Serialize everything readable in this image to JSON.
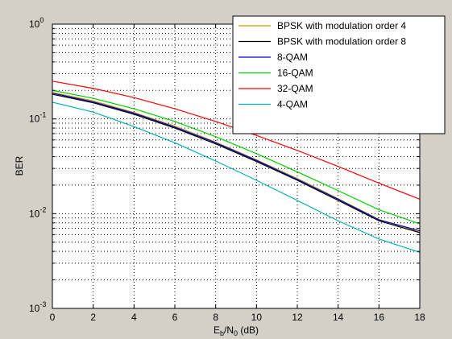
{
  "chart_data": {
    "type": "line",
    "title": "",
    "xlabel": {
      "main": "E",
      "sub1": "b",
      "mid": "/N",
      "sub2": "0",
      "tail": " (dB)"
    },
    "ylabel": "BER",
    "xlim": [
      0,
      18
    ],
    "ylim": [
      0.001,
      1
    ],
    "yscale": "log",
    "grid": true,
    "legend_position": "top-right",
    "x_ticks": [
      0,
      2,
      4,
      6,
      8,
      10,
      12,
      14,
      16,
      18
    ],
    "y_ticks": [
      {
        "base": "10",
        "exp": "-3",
        "value": 0.001
      },
      {
        "base": "10",
        "exp": "-2",
        "value": 0.01
      },
      {
        "base": "10",
        "exp": "-1",
        "value": 0.1
      },
      {
        "base": "10",
        "exp": "0",
        "value": 1
      }
    ],
    "x": [
      0,
      2,
      4,
      6,
      8,
      10,
      12,
      14,
      16,
      18
    ],
    "series": [
      {
        "name": "BPSK with modulation order 4",
        "color": "#c8a000",
        "values": [
          0.19,
          0.155,
          0.117,
          0.084,
          0.057,
          0.037,
          0.0235,
          0.0144,
          0.0087,
          0.0064
        ]
      },
      {
        "name": "BPSK with modulation order 8",
        "color": "#000000",
        "values": [
          0.182,
          0.148,
          0.112,
          0.08,
          0.0545,
          0.0355,
          0.0225,
          0.0138,
          0.0084,
          0.0063
        ]
      },
      {
        "name": "8-QAM",
        "color": "#0000cc",
        "values": [
          0.187,
          0.151,
          0.115,
          0.082,
          0.056,
          0.0365,
          0.023,
          0.0142,
          0.0086,
          0.0066
        ]
      },
      {
        "name": "16-QAM",
        "color": "#00cc00",
        "values": [
          0.2,
          0.165,
          0.128,
          0.094,
          0.065,
          0.043,
          0.0276,
          0.0175,
          0.011,
          0.0078
        ]
      },
      {
        "name": "32-QAM",
        "color": "#ff0000",
        "values": [
          0.25,
          0.21,
          0.168,
          0.128,
          0.094,
          0.067,
          0.0465,
          0.0315,
          0.021,
          0.0142
        ]
      },
      {
        "name": "4-QAM",
        "color": "#00b0b0",
        "values": [
          0.15,
          0.118,
          0.083,
          0.056,
          0.036,
          0.0225,
          0.0138,
          0.0084,
          0.0054,
          0.0039
        ]
      }
    ]
  }
}
